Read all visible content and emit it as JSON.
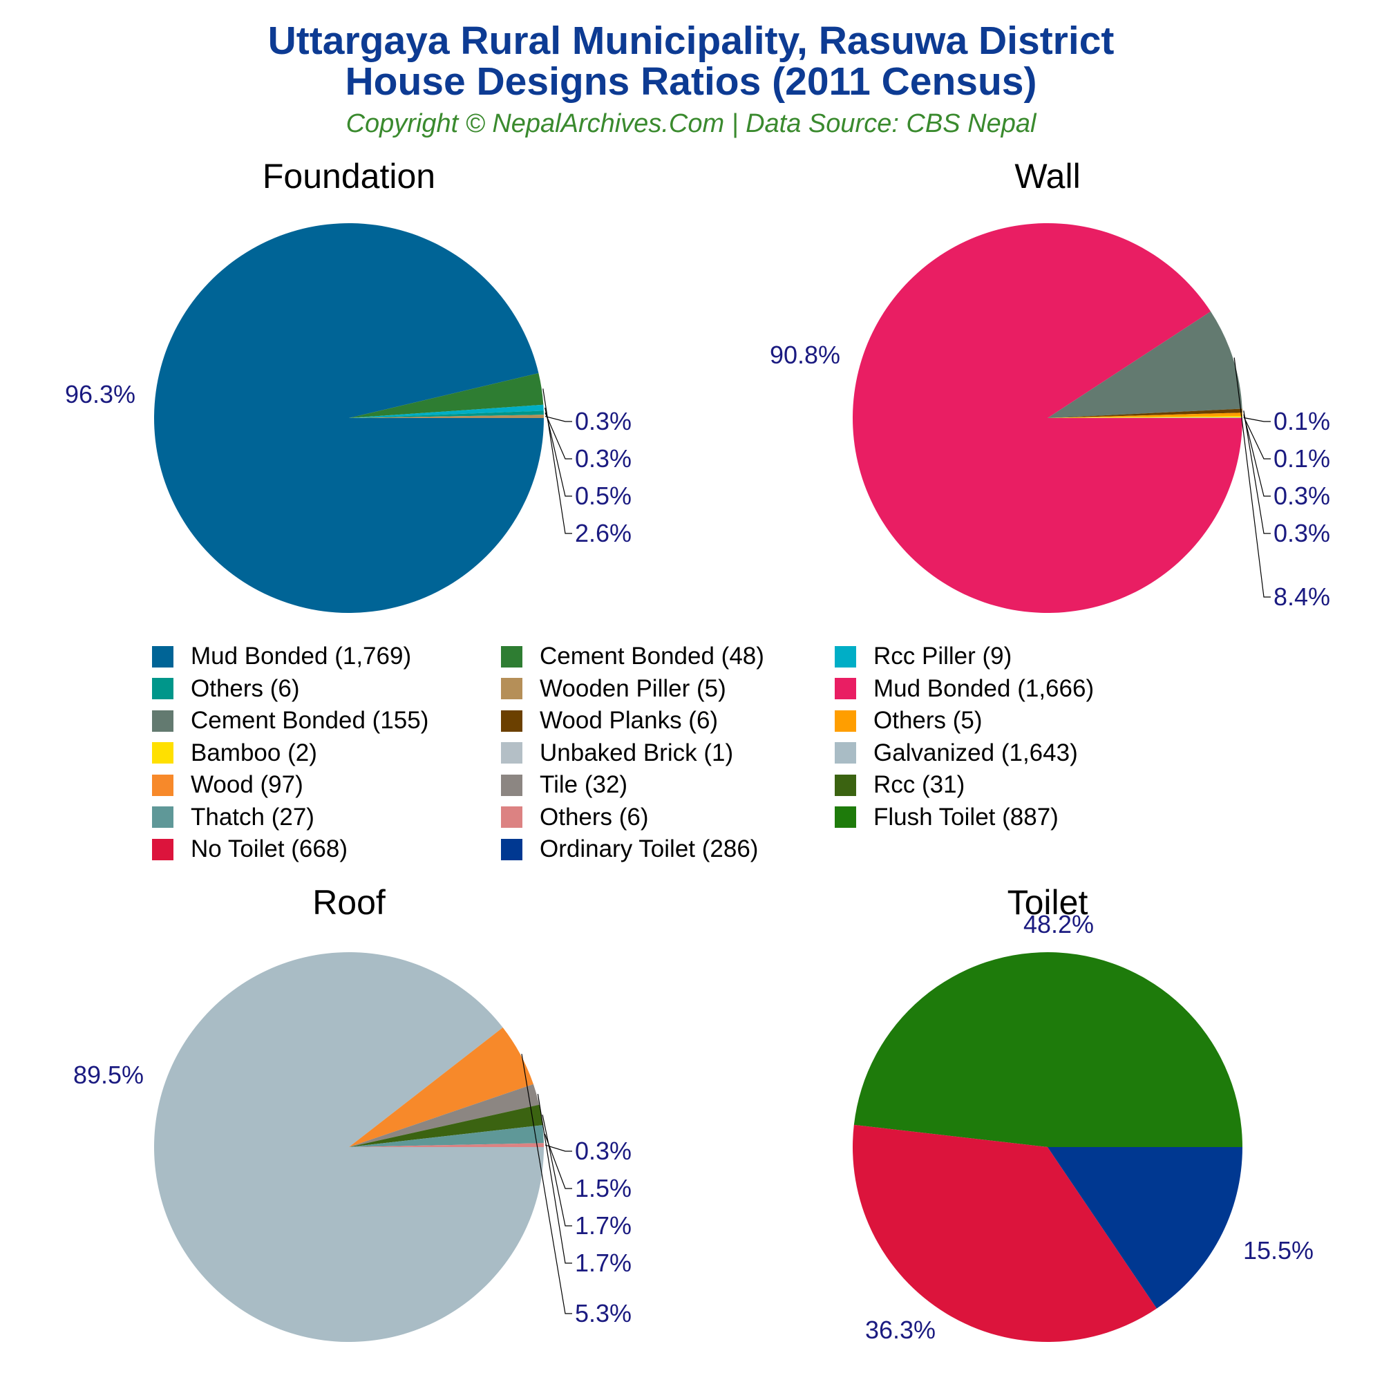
{
  "header": {
    "title_line1": "Uttargaya Rural Municipality, Rasuwa District",
    "title_line2": "House Designs Ratios (2011 Census)",
    "subtitle": "Copyright © NepalArchives.Com | Data Source: CBS Nepal"
  },
  "colors": {
    "title": "#0d3b93",
    "subtitle": "#3a8a2e",
    "pct_label": "#1a1a80"
  },
  "chart_data": [
    {
      "type": "pie",
      "title": "Foundation",
      "slices": [
        {
          "label": "Mud Bonded (1,769)",
          "value": 1769,
          "pct": "96.3%",
          "color": "#006496"
        },
        {
          "label": "Cement Bonded (48)",
          "value": 48,
          "pct": "2.6%",
          "color": "#2e7d32"
        },
        {
          "label": "Rcc Piller (9)",
          "value": 9,
          "pct": "0.5%",
          "color": "#00aec6"
        },
        {
          "label": "Others (6)",
          "value": 6,
          "pct": "0.3%",
          "color": "#00968a"
        },
        {
          "label": "Wooden Piller (5)",
          "value": 5,
          "pct": "0.3%",
          "color": "#b58f58"
        }
      ]
    },
    {
      "type": "pie",
      "title": "Wall",
      "slices": [
        {
          "label": "Mud Bonded (1,666)",
          "value": 1666,
          "pct": "90.8%",
          "color": "#e91e63"
        },
        {
          "label": "Cement Bonded (155)",
          "value": 155,
          "pct": "8.4%",
          "color": "#637a70"
        },
        {
          "label": "Wood Planks (6)",
          "value": 6,
          "pct": "0.3%",
          "color": "#6b4000"
        },
        {
          "label": "Others (5)",
          "value": 5,
          "pct": "0.3%",
          "color": "#ff9e00"
        },
        {
          "label": "Bamboo (2)",
          "value": 2,
          "pct": "0.1%",
          "color": "#ffe000"
        },
        {
          "label": "Unbaked Brick (1)",
          "value": 1,
          "pct": "0.1%",
          "color": "#b4bfc6"
        }
      ]
    },
    {
      "type": "pie",
      "title": "Roof",
      "slices": [
        {
          "label": "Galvanized (1,643)",
          "value": 1643,
          "pct": "89.5%",
          "color": "#a9bcc5"
        },
        {
          "label": "Wood (97)",
          "value": 97,
          "pct": "5.3%",
          "color": "#f7892a"
        },
        {
          "label": "Tile (32)",
          "value": 32,
          "pct": "1.7%",
          "color": "#8c8682"
        },
        {
          "label": "Rcc (31)",
          "value": 31,
          "pct": "1.7%",
          "color": "#3b6311"
        },
        {
          "label": "Thatch (27)",
          "value": 27,
          "pct": "1.5%",
          "color": "#5f9898"
        },
        {
          "label": "Others (6)",
          "value": 6,
          "pct": "0.3%",
          "color": "#dc8282"
        }
      ]
    },
    {
      "type": "pie",
      "title": "Toilet",
      "slices": [
        {
          "label": "Flush Toilet (887)",
          "value": 887,
          "pct": "48.2%",
          "color": "#1e7b0b"
        },
        {
          "label": "No Toilet (668)",
          "value": 668,
          "pct": "36.3%",
          "color": "#dc143c"
        },
        {
          "label": "Ordinary Toilet (286)",
          "value": 286,
          "pct": "15.5%",
          "color": "#003891"
        }
      ]
    }
  ],
  "legend": {
    "columns": 3,
    "placement": "center",
    "items": [
      {
        "label": "Mud Bonded (1,769)",
        "color": "#006496"
      },
      {
        "label": "Cement Bonded (48)",
        "color": "#2e7d32"
      },
      {
        "label": "Rcc Piller (9)",
        "color": "#00aec6"
      },
      {
        "label": "Others (6)",
        "color": "#00968a"
      },
      {
        "label": "Wooden Piller (5)",
        "color": "#b58f58"
      },
      {
        "label": "Mud Bonded (1,666)",
        "color": "#e91e63"
      },
      {
        "label": "Cement Bonded (155)",
        "color": "#637a70"
      },
      {
        "label": "Wood Planks (6)",
        "color": "#6b4000"
      },
      {
        "label": "Others (5)",
        "color": "#ff9e00"
      },
      {
        "label": "Bamboo (2)",
        "color": "#ffe000"
      },
      {
        "label": "Unbaked Brick (1)",
        "color": "#b4bfc6"
      },
      {
        "label": "Galvanized (1,643)",
        "color": "#a9bcc5"
      },
      {
        "label": "Wood (97)",
        "color": "#f7892a"
      },
      {
        "label": "Tile (32)",
        "color": "#8c8682"
      },
      {
        "label": "Rcc (31)",
        "color": "#3b6311"
      },
      {
        "label": "Thatch (27)",
        "color": "#5f9898"
      },
      {
        "label": "Others (6)",
        "color": "#dc8282"
      },
      {
        "label": "Flush Toilet (887)",
        "color": "#1e7b0b"
      },
      {
        "label": "No Toilet (668)",
        "color": "#dc143c"
      },
      {
        "label": "Ordinary Toilet (286)",
        "color": "#003891"
      }
    ]
  }
}
